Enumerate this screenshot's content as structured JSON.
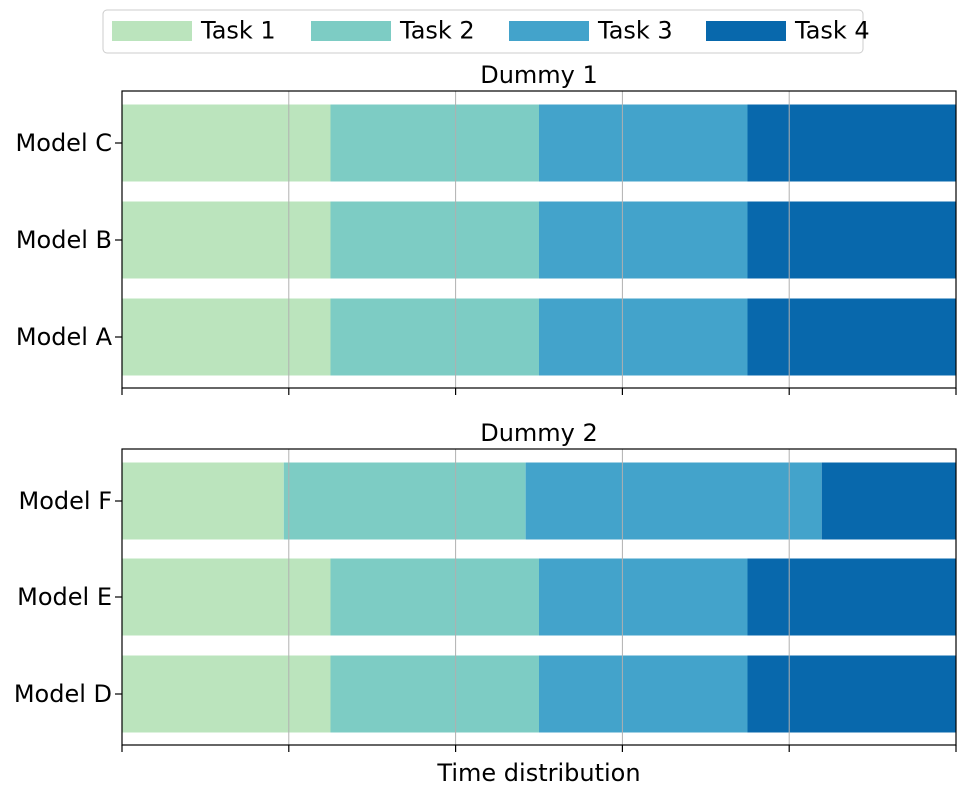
{
  "legend": {
    "placement": "top-center",
    "entries": [
      {
        "label": "Task 1",
        "color": "#bbe4bd"
      },
      {
        "label": "Task 2",
        "color": "#7dccc4"
      },
      {
        "label": "Task 3",
        "color": "#43a3cb"
      },
      {
        "label": "Task 4",
        "color": "#0868ac"
      }
    ]
  },
  "chart_data": [
    {
      "type": "bar",
      "orientation": "horizontal",
      "stacked": true,
      "title": "Dummy 1",
      "xlabel": "",
      "xlim": [
        0,
        1
      ],
      "grid": "x",
      "categories": [
        "Model A",
        "Model B",
        "Model C"
      ],
      "series": [
        {
          "name": "Task 1",
          "values": [
            0.25,
            0.25,
            0.25
          ]
        },
        {
          "name": "Task 2",
          "values": [
            0.25,
            0.25,
            0.25
          ]
        },
        {
          "name": "Task 3",
          "values": [
            0.25,
            0.25,
            0.25
          ]
        },
        {
          "name": "Task 4",
          "values": [
            0.25,
            0.25,
            0.25
          ]
        }
      ]
    },
    {
      "type": "bar",
      "orientation": "horizontal",
      "stacked": true,
      "title": "Dummy 2",
      "xlabel": "Time distribution",
      "xlim": [
        0,
        1
      ],
      "grid": "x",
      "categories": [
        "Model D",
        "Model E",
        "Model F"
      ],
      "series": [
        {
          "name": "Task 1",
          "values": [
            0.25,
            0.25,
            0.194
          ]
        },
        {
          "name": "Task 2",
          "values": [
            0.25,
            0.25,
            0.29
          ]
        },
        {
          "name": "Task 3",
          "values": [
            0.25,
            0.25,
            0.355
          ]
        },
        {
          "name": "Task 4",
          "values": [
            0.25,
            0.25,
            0.161
          ]
        }
      ]
    }
  ]
}
